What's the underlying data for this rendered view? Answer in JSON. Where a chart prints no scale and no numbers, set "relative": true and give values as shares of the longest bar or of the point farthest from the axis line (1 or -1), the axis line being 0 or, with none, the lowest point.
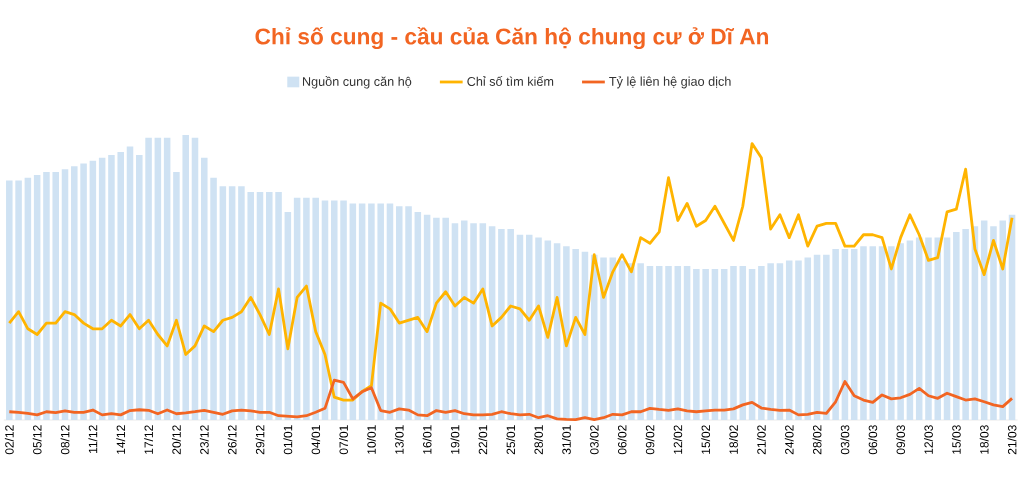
{
  "chart_data": {
    "type": "bar",
    "title": "Chỉ số cung - cầu của Căn hộ chung cư ở Dĩ An",
    "relative": true,
    "legend": "top",
    "categories": [
      "02/12",
      null,
      null,
      "05/12",
      null,
      null,
      "08/12",
      null,
      null,
      "11/12",
      null,
      null,
      "14/12",
      null,
      null,
      "17/12",
      null,
      null,
      "20/12",
      null,
      null,
      "23/12",
      null,
      null,
      "26/12",
      null,
      null,
      "29/12",
      null,
      null,
      "01/01",
      null,
      null,
      "04/01",
      null,
      null,
      "07/01",
      null,
      null,
      "10/01",
      null,
      null,
      "13/01",
      null,
      null,
      "16/01",
      null,
      null,
      "19/01",
      null,
      null,
      "22/01",
      null,
      null,
      "25/01",
      null,
      null,
      "28/01",
      null,
      null,
      "31/01",
      null,
      null,
      "03/02",
      null,
      null,
      "06/02",
      null,
      null,
      "09/02",
      null,
      null,
      "12/02",
      null,
      null,
      "15/02",
      null,
      null,
      "18/02",
      null,
      null,
      "21/02",
      null,
      null,
      "24/02",
      null,
      null,
      "28/02",
      null,
      null,
      "03/03",
      null,
      null,
      "06/03",
      null,
      null,
      "09/03",
      null,
      null,
      "12/03",
      null,
      null,
      "15/03",
      null,
      null,
      "18/03",
      null,
      null,
      "21/03"
    ],
    "series": [
      {
        "name": "Nguồn cung căn hộ",
        "color": "#cfe2f3",
        "values": [
          0.84,
          0.84,
          0.85,
          0.86,
          0.87,
          0.87,
          0.88,
          0.89,
          0.9,
          0.91,
          0.92,
          0.93,
          0.94,
          0.96,
          0.93,
          0.99,
          0.99,
          0.99,
          0.87,
          1.0,
          0.99,
          0.92,
          0.85,
          0.82,
          0.82,
          0.82,
          0.8,
          0.8,
          0.8,
          0.8,
          0.73,
          0.78,
          0.78,
          0.78,
          0.77,
          0.77,
          0.77,
          0.76,
          0.76,
          0.76,
          0.76,
          0.76,
          0.75,
          0.75,
          0.73,
          0.72,
          0.71,
          0.71,
          0.69,
          0.7,
          0.69,
          0.69,
          0.68,
          0.67,
          0.67,
          0.65,
          0.65,
          0.64,
          0.63,
          0.62,
          0.61,
          0.6,
          0.59,
          0.58,
          0.57,
          0.57,
          0.56,
          0.55,
          0.55,
          0.54,
          0.54,
          0.54,
          0.54,
          0.54,
          0.53,
          0.53,
          0.53,
          0.53,
          0.54,
          0.54,
          0.53,
          0.54,
          0.55,
          0.55,
          0.56,
          0.56,
          0.57,
          0.58,
          0.58,
          0.6,
          0.6,
          0.6,
          0.61,
          0.61,
          0.61,
          0.61,
          0.62,
          0.63,
          0.64,
          0.64,
          0.64,
          0.64,
          0.66,
          0.67,
          0.68,
          0.7,
          0.68,
          0.7,
          0.72
        ]
      },
      {
        "name": "Chỉ số tìm kiếm",
        "type": "line",
        "color": "#ffb400",
        "values": [
          0.34,
          0.38,
          0.32,
          0.3,
          0.34,
          0.34,
          0.38,
          0.37,
          0.34,
          0.32,
          0.32,
          0.35,
          0.33,
          0.37,
          0.32,
          0.35,
          0.3,
          0.26,
          0.35,
          0.23,
          0.26,
          0.33,
          0.31,
          0.35,
          0.36,
          0.38,
          0.43,
          0.37,
          0.3,
          0.46,
          0.25,
          0.43,
          0.47,
          0.31,
          0.23,
          0.08,
          0.07,
          0.07,
          0.1,
          0.12,
          0.41,
          0.39,
          0.34,
          0.35,
          0.36,
          0.31,
          0.41,
          0.45,
          0.4,
          0.43,
          0.41,
          0.46,
          0.33,
          0.36,
          0.4,
          0.39,
          0.35,
          0.4,
          0.29,
          0.43,
          0.26,
          0.36,
          0.3,
          0.58,
          0.43,
          0.52,
          0.58,
          0.52,
          0.64,
          0.62,
          0.66,
          0.85,
          0.7,
          0.76,
          0.68,
          0.7,
          0.75,
          0.69,
          0.63,
          0.75,
          0.97,
          0.92,
          0.67,
          0.72,
          0.64,
          0.72,
          0.61,
          0.68,
          0.69,
          0.69,
          0.61,
          0.61,
          0.65,
          0.65,
          0.64,
          0.53,
          0.64,
          0.72,
          0.65,
          0.56,
          0.57,
          0.73,
          0.74,
          0.88,
          0.6,
          0.51,
          0.63,
          0.53,
          0.71
        ]
      },
      {
        "name": "Tỷ lệ liên hệ giao dịch",
        "type": "line",
        "color": "#f26522",
        "values": [
          0.029,
          0.027,
          0.023,
          0.018,
          0.029,
          0.026,
          0.032,
          0.027,
          0.027,
          0.035,
          0.018,
          0.022,
          0.018,
          0.033,
          0.036,
          0.034,
          0.022,
          0.035,
          0.022,
          0.025,
          0.029,
          0.034,
          0.027,
          0.02,
          0.032,
          0.035,
          0.032,
          0.027,
          0.027,
          0.015,
          0.013,
          0.011,
          0.015,
          0.027,
          0.041,
          0.14,
          0.132,
          0.074,
          0.099,
          0.113,
          0.033,
          0.027,
          0.039,
          0.035,
          0.018,
          0.015,
          0.033,
          0.027,
          0.033,
          0.022,
          0.018,
          0.018,
          0.02,
          0.029,
          0.022,
          0.018,
          0.02,
          0.008,
          0.015,
          0.004,
          0.002,
          0.001,
          0.008,
          0.001,
          0.008,
          0.02,
          0.018,
          0.029,
          0.029,
          0.041,
          0.037,
          0.034,
          0.039,
          0.032,
          0.029,
          0.032,
          0.035,
          0.035,
          0.039,
          0.053,
          0.062,
          0.042,
          0.037,
          0.034,
          0.035,
          0.018,
          0.02,
          0.027,
          0.023,
          0.064,
          0.135,
          0.085,
          0.07,
          0.062,
          0.088,
          0.074,
          0.078,
          0.09,
          0.111,
          0.085,
          0.076,
          0.094,
          0.082,
          0.07,
          0.074,
          0.064,
          0.053,
          0.047,
          0.076
        ]
      }
    ]
  }
}
